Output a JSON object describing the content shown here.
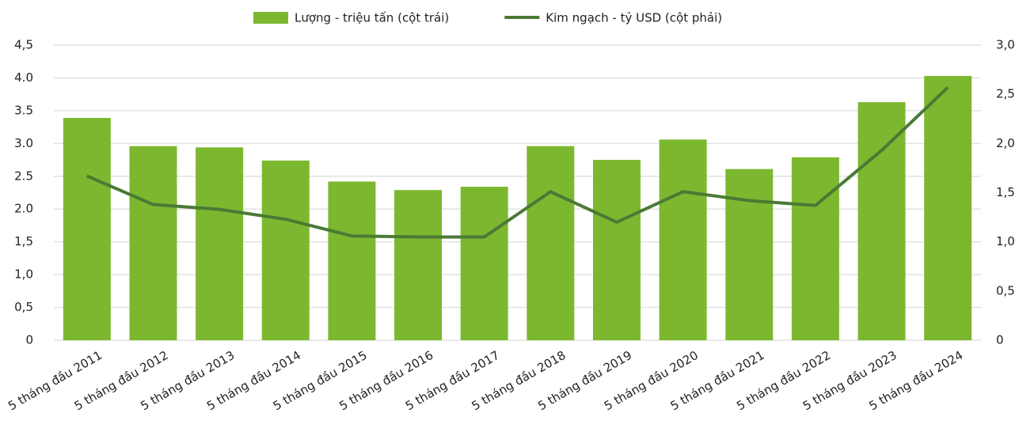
{
  "chart_data": {
    "type": "bar",
    "categories": [
      "5 tháng đầu 2011",
      "5 tháng đầu 2012",
      "5 tháng đầu 2013",
      "5 tháng đầu 2014",
      "5 tháng đầu 2015",
      "5 tháng đầu 2016",
      "5 tháng đầu 2017",
      "5 tháng đầu 2018",
      "5 tháng đầu 2019",
      "5 tháng đầu 2020",
      "5 tháng đầu 2021",
      "5 tháng đầu 2022",
      "5 tháng đầu 2023",
      "5 tháng đầu 2024"
    ],
    "series": [
      {
        "name": "Lượng - triệu tấn (cột trái)",
        "color": "#7cb82f",
        "type": "bar",
        "values": [
          3.39,
          2.96,
          2.94,
          2.74,
          2.42,
          2.29,
          2.34,
          2.96,
          2.75,
          3.06,
          2.61,
          2.79,
          3.63,
          4.03
        ]
      },
      {
        "name": "Kim ngạch - tỷ USD (cột phải)",
        "color": "#4a7a35",
        "type": "line",
        "axis": "y2",
        "values": [
          1.67,
          1.38,
          1.33,
          1.23,
          1.06,
          1.05,
          1.05,
          1.51,
          1.2,
          1.51,
          1.42,
          1.37,
          1.93,
          2.57
        ]
      }
    ],
    "ylim": [
      0,
      4.5
    ],
    "yticks": [
      0,
      {
        "value": 0.5,
        "label": "0,5"
      },
      {
        "value": 1,
        "label": "1,0"
      },
      {
        "value": 1.5,
        "label": "1,5"
      },
      {
        "value": 2,
        "label": "2.0"
      },
      2.5,
      {
        "value": 3,
        "label": "3.0"
      },
      3.5,
      {
        "value": 4,
        "label": "4.0"
      },
      {
        "value": 4.5,
        "label": "4,5"
      }
    ],
    "y2lim": [
      0,
      3
    ],
    "y2ticks": [
      0,
      {
        "value": 0.5,
        "label": "0,5"
      },
      {
        "value": 1,
        "label": "1,0"
      },
      {
        "value": 1.5,
        "label": "1,5"
      },
      {
        "value": 2,
        "label": "2,0"
      },
      {
        "value": 2.5,
        "label": "2,5"
      },
      {
        "value": 3,
        "label": "3,0"
      }
    ],
    "grid": true,
    "legend": "top"
  }
}
